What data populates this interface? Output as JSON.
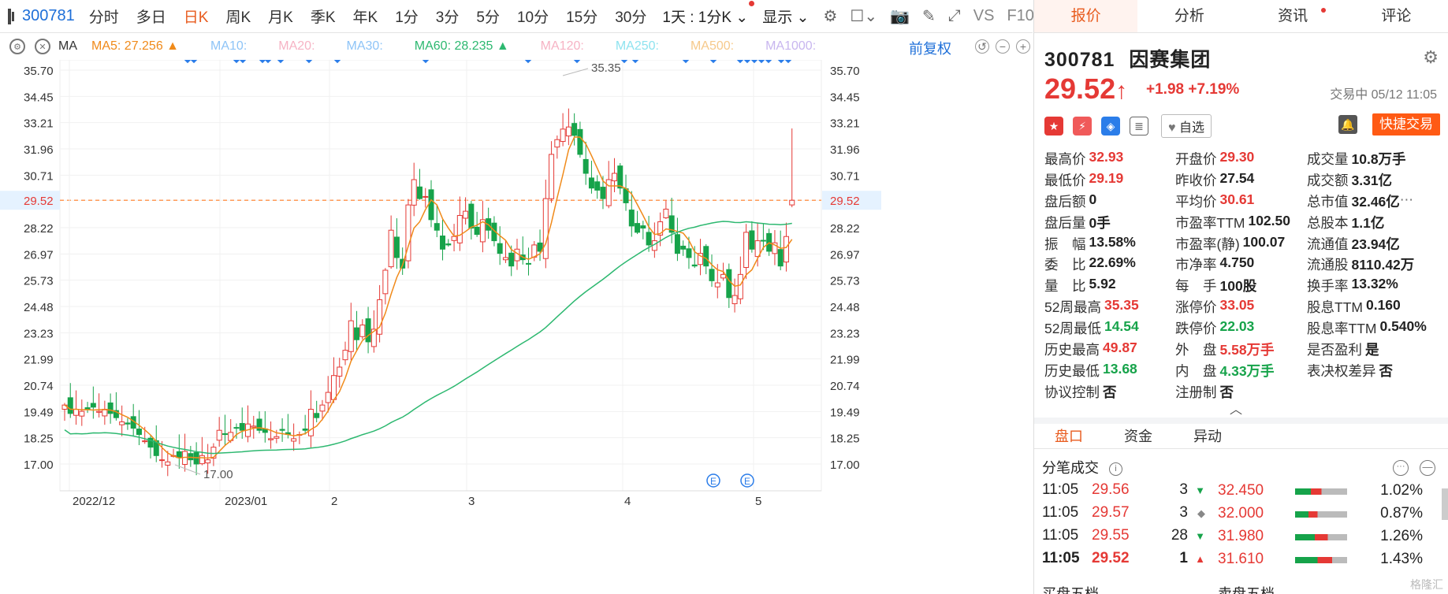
{
  "toolbar": {
    "code": "300781",
    "timeframes": [
      "分时",
      "多日",
      "日K",
      "周K",
      "月K",
      "季K",
      "年K",
      "1分",
      "3分",
      "5分",
      "10分",
      "15分",
      "30分"
    ],
    "active_timeframe": "日K",
    "dropdown_interval": "1天 : 1分K",
    "display_label": "显示",
    "vs_label": "VS",
    "f10_label": "F10"
  },
  "ma": {
    "label": "MA",
    "items": [
      {
        "label": "MA5: 27.256 ▲",
        "color": "#f08a1a"
      },
      {
        "label": "MA10:",
        "color": "#8ec4f7"
      },
      {
        "label": "MA20:",
        "color": "#f6b3c4"
      },
      {
        "label": "MA30:",
        "color": "#8ec4f7"
      },
      {
        "label": "MA60: 28.235 ▲",
        "color": "#2db870"
      },
      {
        "label": "MA120:",
        "color": "#f6b3c4"
      },
      {
        "label": "MA250:",
        "color": "#8ee3ef"
      },
      {
        "label": "MA500:",
        "color": "#f6c98b"
      },
      {
        "label": "MA1000:",
        "color": "#c8b6ef"
      }
    ],
    "adjust_label": "前复权"
  },
  "chart_data": {
    "type": "candlestick",
    "y_ticks": [
      "35.70",
      "34.45",
      "33.21",
      "31.96",
      "30.71",
      "29.52",
      "28.22",
      "26.97",
      "25.73",
      "24.48",
      "23.23",
      "21.99",
      "20.74",
      "19.49",
      "18.25",
      "17.00"
    ],
    "ylim": [
      16.25,
      36.45
    ],
    "x_labels": [
      "2022/12",
      "2023/01",
      "2",
      "3",
      "4",
      "5"
    ],
    "current_price_label": "29.52",
    "current_price": 29.52,
    "max_annotation": "35.35",
    "min_annotation": "17.00",
    "colors": {
      "up": "#e53935",
      "down": "#16a34a",
      "ma5": "#f08a1a",
      "ma60": "#2db870",
      "ref": "#ff9a57"
    }
  },
  "stock": {
    "code": "300781",
    "name": "因赛集团",
    "price": "29.52",
    "change": "+1.98",
    "change_pct": "+7.19%",
    "status_time": "交易中 05/12 11:05",
    "watch_label": "自选",
    "quick_trade": "快捷交易"
  },
  "tabs": [
    "报价",
    "分析",
    "资讯",
    "评论"
  ],
  "quotes": [
    [
      [
        "最高价",
        "32.93",
        "up"
      ],
      [
        "开盘价",
        "29.30",
        "up"
      ],
      [
        "成交量",
        "10.8万手",
        ""
      ]
    ],
    [
      [
        "最低价",
        "29.19",
        "up"
      ],
      [
        "昨收价",
        "27.54",
        ""
      ],
      [
        "成交额",
        "3.31亿",
        ""
      ]
    ],
    [
      [
        "盘后额",
        "0",
        ""
      ],
      [
        "平均价",
        "30.61",
        "up"
      ],
      [
        "总市值",
        "32.46亿",
        ""
      ]
    ],
    [
      [
        "盘后量",
        "0手",
        ""
      ],
      [
        "市盈率TTM",
        "102.50",
        ""
      ],
      [
        "总股本",
        "1.1亿",
        ""
      ]
    ],
    [
      [
        "振　幅",
        "13.58%",
        ""
      ],
      [
        "市盈率(静)",
        "100.07",
        ""
      ],
      [
        "流通值",
        "23.94亿",
        ""
      ]
    ],
    [
      [
        "委　比",
        "22.69%",
        ""
      ],
      [
        "市净率",
        "4.750",
        ""
      ],
      [
        "流通股",
        "8110.42万",
        ""
      ]
    ],
    [
      [
        "量　比",
        "5.92",
        ""
      ],
      [
        "每　手",
        "100股",
        ""
      ],
      [
        "换手率",
        "13.32%",
        ""
      ]
    ],
    [
      [
        "52周最高",
        "35.35",
        "up"
      ],
      [
        "涨停价",
        "33.05",
        "up"
      ],
      [
        "股息TTM",
        "0.160",
        ""
      ]
    ],
    [
      [
        "52周最低",
        "14.54",
        "down"
      ],
      [
        "跌停价",
        "22.03",
        "down"
      ],
      [
        "股息率TTM",
        "0.540%",
        ""
      ]
    ],
    [
      [
        "历史最高",
        "49.87",
        "up"
      ],
      [
        "外　盘",
        "5.58万手",
        "up"
      ],
      [
        "是否盈利",
        "是",
        ""
      ]
    ],
    [
      [
        "历史最低",
        "13.68",
        "down"
      ],
      [
        "内　盘",
        "4.33万手",
        "down"
      ],
      [
        "表决权差异",
        "否",
        ""
      ]
    ],
    [
      [
        "协议控制",
        "否",
        ""
      ],
      [
        "注册制",
        "否",
        ""
      ],
      [
        "",
        "",
        ""
      ]
    ]
  ],
  "sub_tabs": [
    "盘口",
    "资金",
    "异动"
  ],
  "ticks_title": "分笔成交",
  "ticks": [
    {
      "time": "11:05",
      "price": "29.56",
      "vol": "3",
      "dir": "▼",
      "dir_color": "#16a34a"
    },
    {
      "time": "11:05",
      "price": "29.57",
      "vol": "3",
      "dir": "◆",
      "dir_color": "#888888"
    },
    {
      "time": "11:05",
      "price": "29.55",
      "vol": "28",
      "dir": "▼",
      "dir_color": "#16a34a"
    },
    {
      "time": "11:05",
      "price": "29.52",
      "vol": "1",
      "dir": "▲",
      "dir_color": "#e53935"
    }
  ],
  "levels": [
    {
      "price": "32.450",
      "pct": "1.02%",
      "pct_value": 1.02
    },
    {
      "price": "32.000",
      "pct": "0.87%",
      "pct_value": 0.87
    },
    {
      "price": "31.980",
      "pct": "1.26%",
      "pct_value": 1.26
    },
    {
      "price": "31.610",
      "pct": "1.43%",
      "pct_value": 1.43
    }
  ],
  "bottom_labels": [
    "买盘五档",
    "卖盘五档"
  ],
  "watermark": "格隆汇"
}
